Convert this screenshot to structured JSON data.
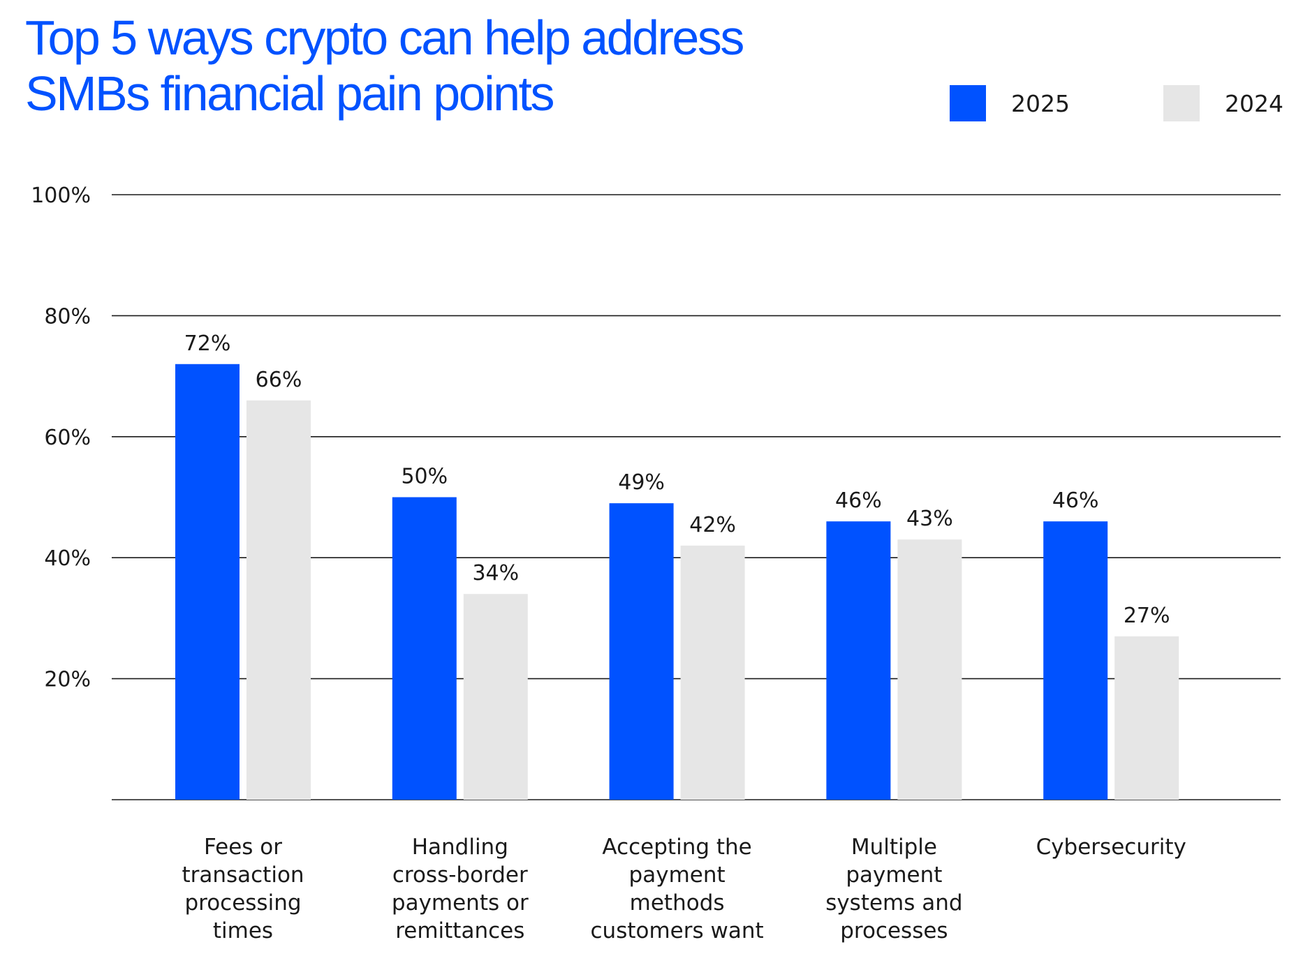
{
  "chart_data": {
    "type": "bar",
    "title": "Top 5 ways crypto can help address SMBs financial pain points",
    "title_lines": [
      "Top 5 ways crypto can help address",
      "SMBs financial pain points"
    ],
    "categories": [
      "Fees or transaction processing times",
      "Handling cross-border payments or remittances",
      "Accepting the payment methods customers want",
      "Multiple payment systems and processes",
      "Cybersecurity"
    ],
    "category_lines": [
      [
        "Fees or",
        "transaction",
        "processing",
        "times"
      ],
      [
        "Handling",
        "cross-border",
        "payments or",
        "remittances"
      ],
      [
        "Accepting the",
        "payment",
        "methods",
        "customers want"
      ],
      [
        "Multiple",
        "payment",
        "systems and",
        "processes"
      ],
      [
        "Cybersecurity"
      ]
    ],
    "series": [
      {
        "name": "2025",
        "color": "#0052ff",
        "values": [
          72,
          50,
          49,
          46,
          46
        ],
        "labels": [
          "72%",
          "50%",
          "49%",
          "46%",
          "46%"
        ]
      },
      {
        "name": "2024",
        "color": "#e6e6e6",
        "values": [
          66,
          34,
          42,
          43,
          27
        ],
        "labels": [
          "66%",
          "34%",
          "42%",
          "43%",
          "27%"
        ]
      }
    ],
    "ylim": [
      0,
      100
    ],
    "yticks": [
      20,
      40,
      60,
      80,
      100
    ],
    "ytick_labels": [
      "20%",
      "40%",
      "60%",
      "80%",
      "100%"
    ],
    "xlabel": "",
    "ylabel": "",
    "grid": true,
    "legend_position": "top-right"
  }
}
